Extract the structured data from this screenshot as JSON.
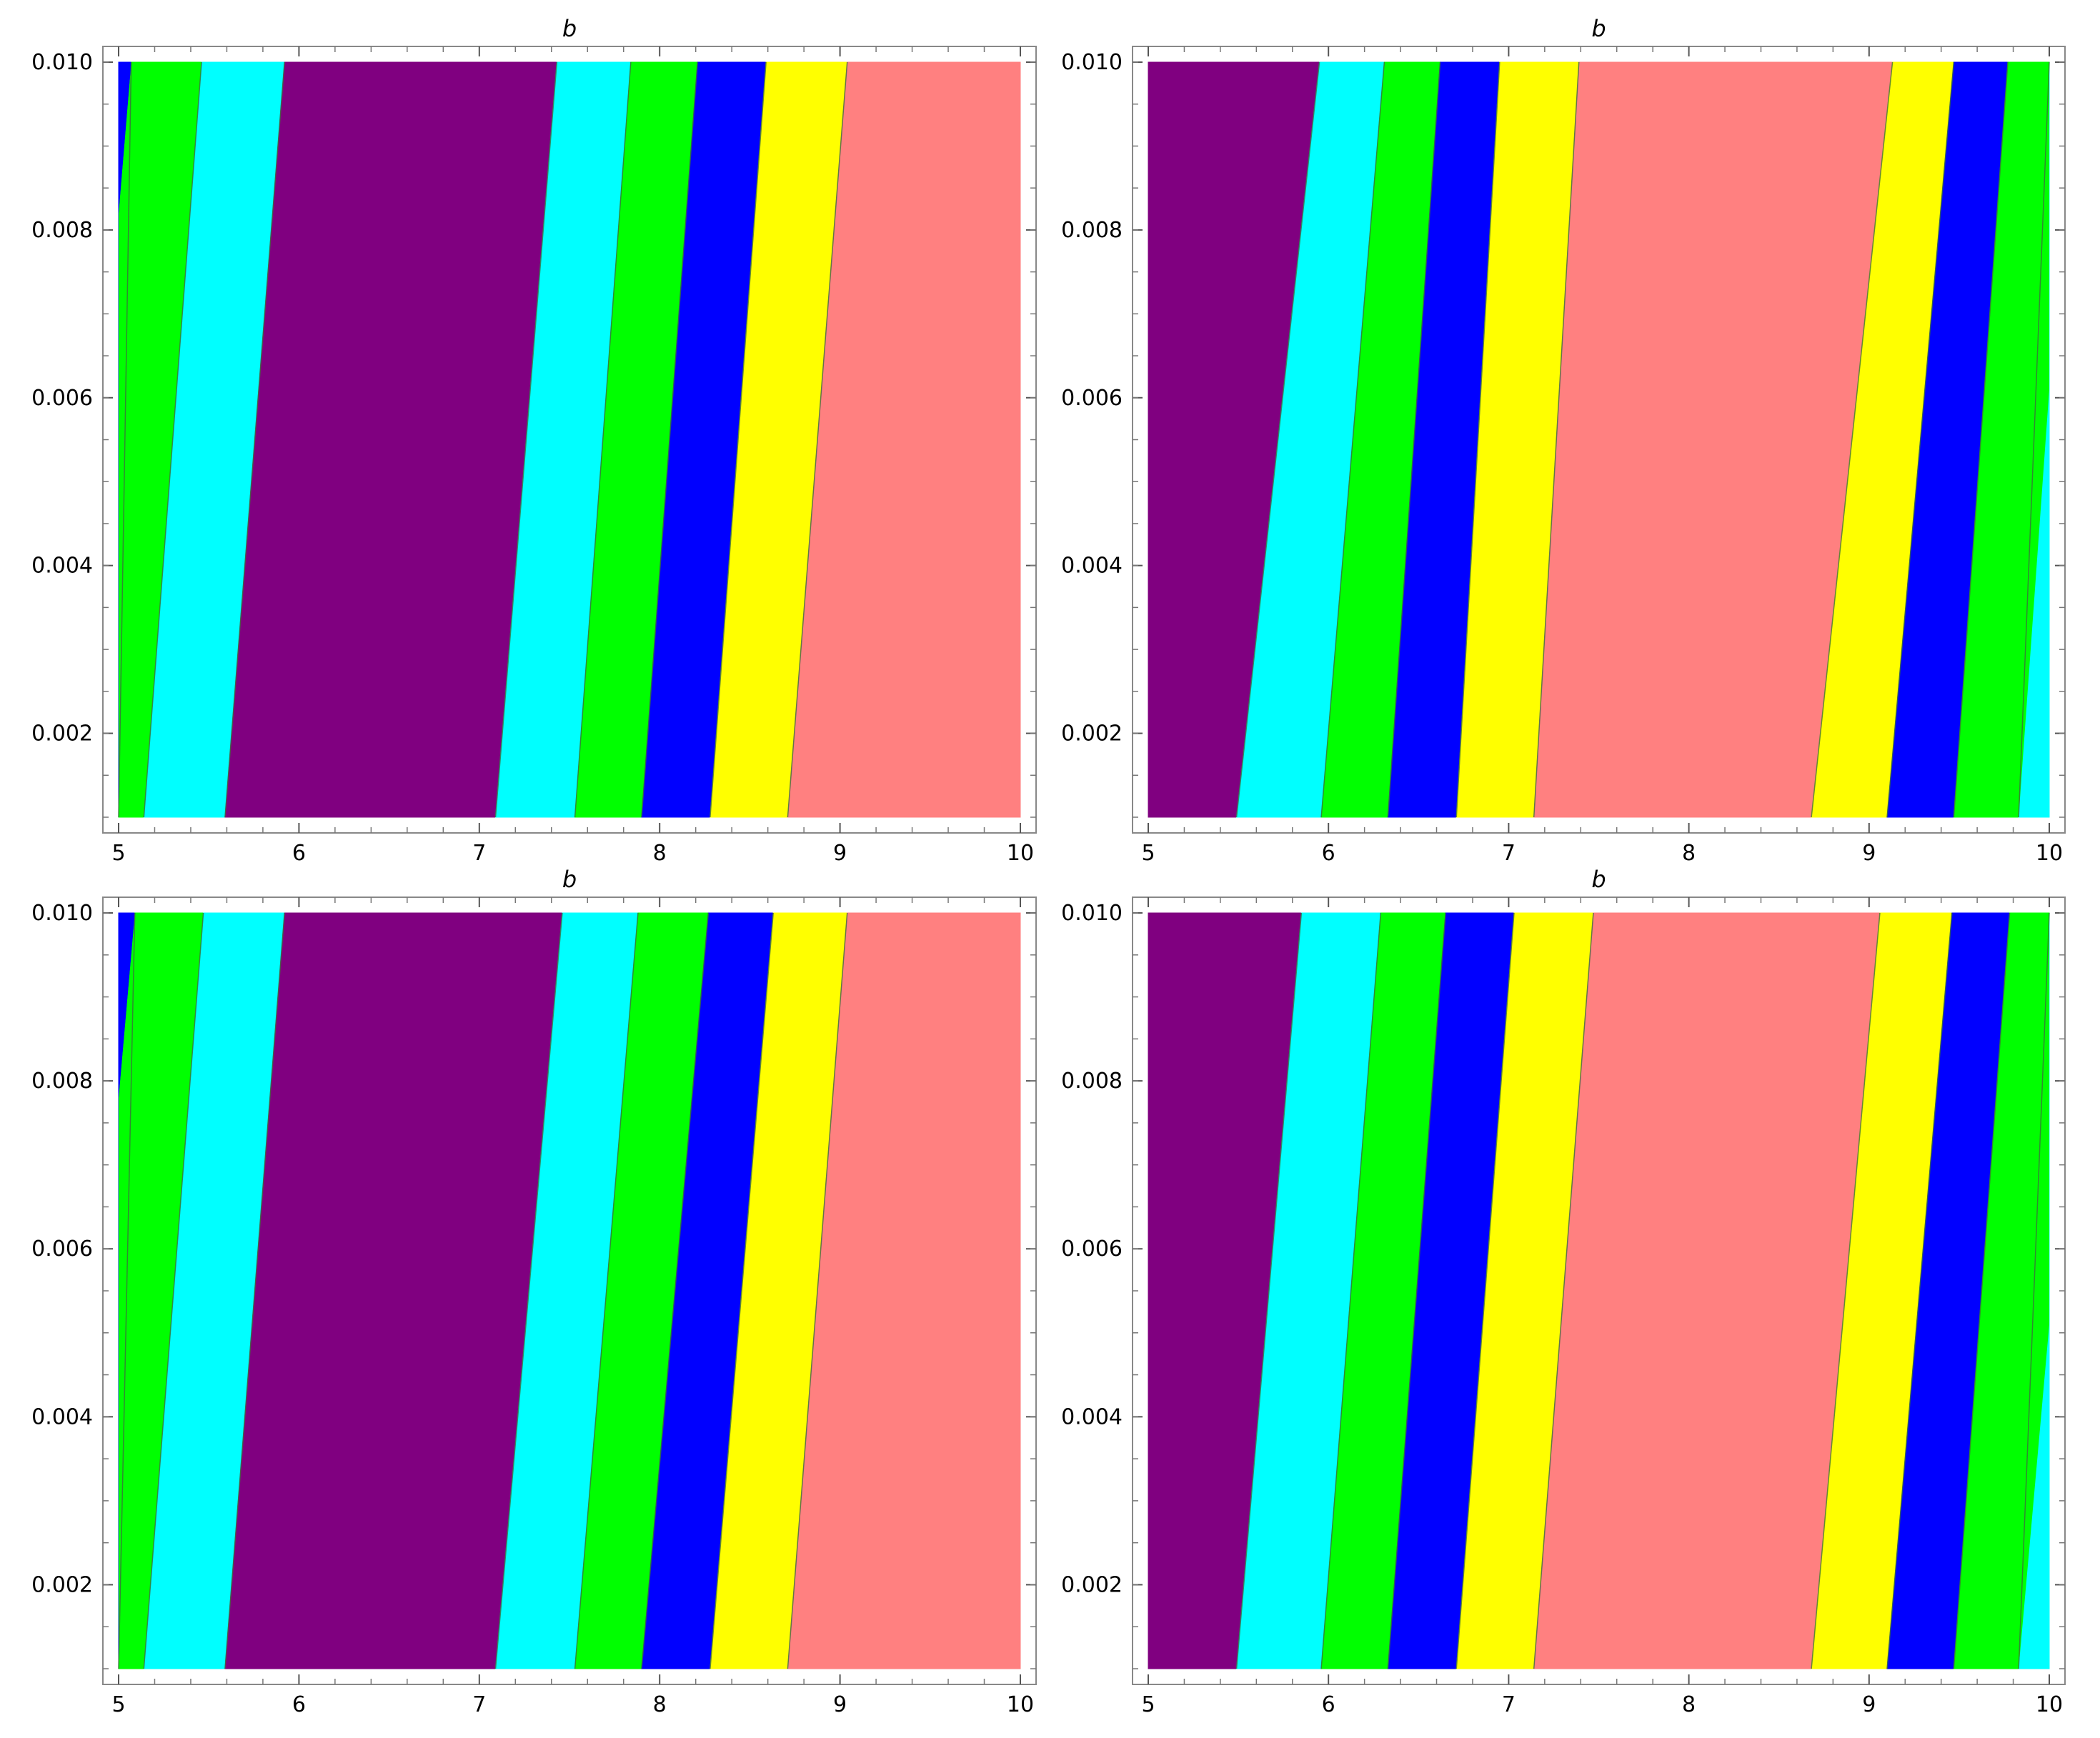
{
  "colors": {
    "purple": "#800080",
    "cyan": "#00ffff",
    "green": "#00ff00",
    "blue": "#0000ff",
    "yellow": "#ffff00",
    "salmon": "#ff8080",
    "frame": "#888888",
    "boundary": "#3c6e3c"
  },
  "chart_data": [
    {
      "type": "heatmap",
      "panel": "top-left",
      "title": "b",
      "xlim": [
        5,
        10
      ],
      "ylim": [
        0.001,
        0.01
      ],
      "xticks": [
        "5",
        "6",
        "7",
        "8",
        "9",
        "10"
      ],
      "yticks": [
        "0.002",
        "0.004",
        "0.006",
        "0.008",
        "0.010"
      ],
      "region_order": [
        "blue",
        "green",
        "cyan",
        "purple",
        "cyan",
        "green",
        "blue",
        "yellow",
        "salmon"
      ],
      "boundaries_at_y_min": [
        5.0,
        5.14,
        5.59,
        7.09,
        7.53,
        7.9,
        8.28,
        8.71
      ],
      "boundaries_at_y_max": [
        5.07,
        5.46,
        5.92,
        7.43,
        7.84,
        8.21,
        8.59,
        9.04
      ],
      "notes": "first boundary reaches x=5.0 at y=0.0082"
    },
    {
      "type": "heatmap",
      "panel": "top-right",
      "title": "b",
      "xlim": [
        5,
        10
      ],
      "ylim": [
        0.001,
        0.01
      ],
      "xticks": [
        "5",
        "6",
        "7",
        "8",
        "9",
        "10"
      ],
      "yticks": [
        "0.002",
        "0.004",
        "0.006",
        "0.008",
        "0.010"
      ],
      "region_order": [
        "purple",
        "cyan",
        "green",
        "blue",
        "yellow",
        "salmon",
        "yellow",
        "blue",
        "green",
        "cyan"
      ],
      "boundaries_at_y_min": [
        5.49,
        5.96,
        6.33,
        6.71,
        7.14,
        8.68,
        9.1,
        9.47,
        9.83
      ],
      "boundaries_at_y_max": [
        5.95,
        6.31,
        6.62,
        6.95,
        7.39,
        9.13,
        9.47,
        9.77,
        10.0
      ],
      "notes": "last boundary reaches x=10 at y=0.0061"
    },
    {
      "type": "heatmap",
      "panel": "bottom-left",
      "title": "b",
      "xlim": [
        5,
        10
      ],
      "ylim": [
        0.001,
        0.01
      ],
      "xticks": [
        "5",
        "6",
        "7",
        "8",
        "9",
        "10"
      ],
      "yticks": [
        "0.002",
        "0.004",
        "0.006",
        "0.008",
        "0.010"
      ],
      "region_order": [
        "blue",
        "green",
        "cyan",
        "purple",
        "cyan",
        "green",
        "blue",
        "yellow",
        "salmon"
      ],
      "boundaries_at_y_min": [
        5.0,
        5.14,
        5.59,
        7.09,
        7.53,
        7.9,
        8.28,
        8.71
      ],
      "boundaries_at_y_max": [
        5.09,
        5.47,
        5.92,
        7.46,
        7.88,
        8.27,
        8.63,
        9.04
      ],
      "notes": "first boundary reaches x=5.0 at y=0.0078"
    },
    {
      "type": "heatmap",
      "panel": "bottom-right",
      "title": "b",
      "xlim": [
        5,
        10
      ],
      "ylim": [
        0.001,
        0.01
      ],
      "xticks": [
        "5",
        "6",
        "7",
        "8",
        "9",
        "10"
      ],
      "yticks": [
        "0.002",
        "0.004",
        "0.006",
        "0.008",
        "0.010"
      ],
      "region_order": [
        "purple",
        "cyan",
        "green",
        "blue",
        "yellow",
        "salmon",
        "yellow",
        "blue",
        "green",
        "cyan"
      ],
      "boundaries_at_y_min": [
        5.49,
        5.96,
        6.33,
        6.71,
        7.14,
        8.68,
        9.1,
        9.47,
        9.83
      ],
      "boundaries_at_y_max": [
        5.85,
        6.29,
        6.65,
        7.03,
        7.47,
        9.06,
        9.46,
        9.78,
        10.0
      ],
      "notes": "last boundary reaches x=10 at y=0.0051"
    }
  ]
}
